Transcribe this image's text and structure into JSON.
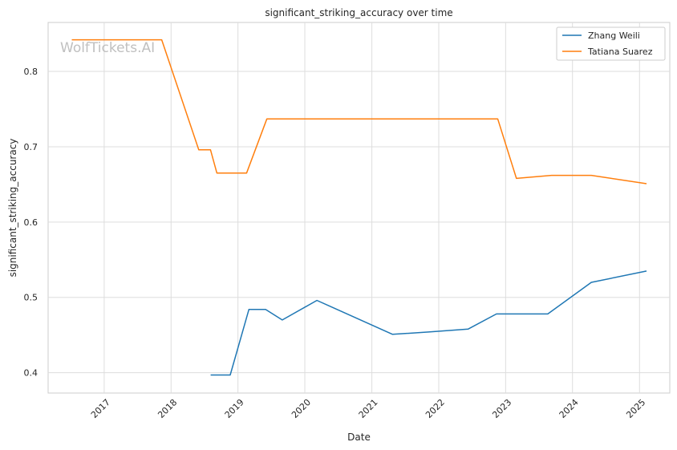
{
  "chart_data": {
    "type": "line",
    "title": "significant_striking_accuracy over time",
    "xlabel": "Date",
    "ylabel": "significant_striking_accuracy",
    "watermark": "WolfTickets.AI",
    "x_ticks": [
      "2017",
      "2018",
      "2019",
      "2020",
      "2021",
      "2022",
      "2023",
      "2024",
      "2025"
    ],
    "y_ticks": [
      "0.4",
      "0.5",
      "0.6",
      "0.7",
      "0.8"
    ],
    "xlim": [
      "2016-03-01",
      "2025-06-15"
    ],
    "ylim": [
      0.373,
      0.865
    ],
    "grid": true,
    "legend_position": "top-right",
    "series": [
      {
        "name": "Zhang Weili",
        "color": "#1f77b4",
        "points": [
          [
            "2018-08-05",
            0.397
          ],
          [
            "2018-11-20",
            0.397
          ],
          [
            "2019-03-02",
            0.484
          ],
          [
            "2019-06-01",
            0.484
          ],
          [
            "2019-08-31",
            0.47
          ],
          [
            "2020-03-07",
            0.496
          ],
          [
            "2021-04-24",
            0.451
          ],
          [
            "2021-11-06",
            0.454
          ],
          [
            "2022-06-11",
            0.458
          ],
          [
            "2022-11-12",
            0.478
          ],
          [
            "2023-08-19",
            0.478
          ],
          [
            "2024-04-13",
            0.52
          ],
          [
            "2025-02-08",
            0.535
          ]
        ]
      },
      {
        "name": "Tatiana Suarez",
        "color": "#ff7f0e",
        "points": [
          [
            "2016-07-08",
            0.842
          ],
          [
            "2017-11-11",
            0.842
          ],
          [
            "2018-06-01",
            0.696
          ],
          [
            "2018-08-04",
            0.696
          ],
          [
            "2018-09-08",
            0.665
          ],
          [
            "2019-02-17",
            0.665
          ],
          [
            "2019-06-08",
            0.737
          ],
          [
            "2022-11-19",
            0.737
          ],
          [
            "2023-03-01",
            0.658
          ],
          [
            "2023-09-09",
            0.662
          ],
          [
            "2024-04-13",
            0.662
          ],
          [
            "2025-02-08",
            0.651
          ]
        ]
      }
    ]
  }
}
